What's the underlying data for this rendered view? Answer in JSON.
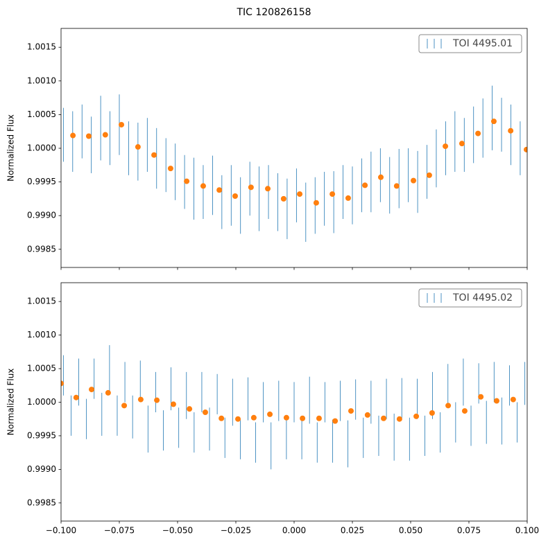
{
  "title": "TIC 120826158",
  "chart_data": [
    {
      "type": "errorbar",
      "ylabel": "Normalized Flux",
      "legend": "upper right",
      "xlim": [
        -0.1,
        0.1
      ],
      "xticks": [
        -0.1,
        -0.075,
        -0.05,
        -0.025,
        0,
        0.025,
        0.05,
        0.075,
        0.1
      ],
      "show_xtick_labels": false,
      "ylim": [
        0.99823,
        1.00178
      ],
      "yticks": [
        0.9985,
        {
          "value": 0.999,
          "label": "0.9990"
        },
        0.9995,
        {
          "value": 1,
          "label": "1.0000"
        },
        1.0005,
        {
          "value": 1.001,
          "label": "1.0010"
        },
        1.0015
      ],
      "series": [
        {
          "name": "TOI 4495.01",
          "color": "#1f77b4",
          "x": [
            -0.099,
            -0.095,
            -0.091,
            -0.087,
            -0.083,
            -0.079,
            -0.075,
            -0.071,
            -0.067,
            -0.063,
            -0.059,
            -0.055,
            -0.051,
            -0.047,
            -0.043,
            -0.039,
            -0.035,
            -0.031,
            -0.027,
            -0.023,
            -0.019,
            -0.015,
            -0.011,
            -0.007,
            -0.003,
            0.001,
            0.005,
            0.009,
            0.013,
            0.017,
            0.021,
            0.025,
            0.029,
            0.033,
            0.037,
            0.041,
            0.045,
            0.049,
            0.053,
            0.057,
            0.061,
            0.065,
            0.069,
            0.073,
            0.077,
            0.081,
            0.085,
            0.089,
            0.093,
            0.097
          ],
          "values": [
            1.0002,
            1.0001,
            1.00025,
            1.00005,
            1.0003,
            1.00015,
            1.00035,
            1.0,
            0.99995,
            1.00005,
            0.99985,
            0.99975,
            0.99965,
            0.9995,
            0.9994,
            0.99935,
            0.99945,
            0.9992,
            0.9993,
            0.99915,
            0.9994,
            0.99925,
            0.99935,
            0.9992,
            0.9991,
            0.9993,
            0.99905,
            0.99915,
            0.99925,
            0.9992,
            0.99935,
            0.9993,
            0.99945,
            0.9995,
            0.9996,
            0.99945,
            0.99955,
            0.9996,
            0.9995,
            0.99965,
            0.99985,
            1.0,
            1.0001,
            1.00005,
            1.0002,
            1.0003,
            1.00045,
            1.00035,
            1.0002,
            1.0
          ],
          "errors": [
            0.0004,
            0.00045,
            0.0004,
            0.00042,
            0.00048,
            0.0004,
            0.00045,
            0.0004,
            0.00043,
            0.0004,
            0.00045,
            0.0004,
            0.00042,
            0.0004,
            0.00046,
            0.0004,
            0.00044,
            0.0004,
            0.00045,
            0.00042,
            0.0004,
            0.00048,
            0.0004,
            0.00043,
            0.00045,
            0.0004,
            0.00044,
            0.00042,
            0.0004,
            0.00046,
            0.0004,
            0.00043,
            0.0004,
            0.00045,
            0.0004,
            0.00042,
            0.00044,
            0.0004,
            0.00046,
            0.0004,
            0.00043,
            0.0004,
            0.00045,
            0.0004,
            0.00042,
            0.00044,
            0.00048,
            0.0004,
            0.00045,
            0.0004
          ]
        },
        {
          "color": "#ff7f0e",
          "x": [
            -0.0949,
            -0.0881,
            -0.081,
            -0.0741,
            -0.067,
            -0.0601,
            -0.053,
            -0.0461,
            -0.039,
            -0.0321,
            -0.0253,
            -0.0185,
            -0.0113,
            -0.0045,
            0.0024,
            0.0095,
            0.0164,
            0.0232,
            0.0304,
            0.0372,
            0.044,
            0.0512,
            0.058,
            0.0649,
            0.072,
            0.0789,
            0.0857,
            0.0929,
            0.0997
          ],
          "values": [
            1.00019,
            1.00018,
            1.0002,
            1.00035,
            1.00002,
            0.9999,
            0.9997,
            0.99951,
            0.99944,
            0.99938,
            0.99929,
            0.99942,
            0.9994,
            0.99925,
            0.99932,
            0.99919,
            0.99932,
            0.99926,
            0.99945,
            0.99957,
            0.99944,
            0.99952,
            0.9996,
            1.00003,
            1.00007,
            1.00022,
            1.0004,
            1.00026,
            0.99998
          ]
        }
      ]
    },
    {
      "type": "errorbar",
      "ylabel": "Normalized Flux",
      "legend": "upper right",
      "xlim": [
        -0.1,
        0.1
      ],
      "xticks": [
        {
          "value": -0.1,
          "label": "−0.100"
        },
        {
          "value": -0.075,
          "label": "−0.075"
        },
        {
          "value": -0.05,
          "label": "−0.050"
        },
        {
          "value": -0.025,
          "label": "−0.025"
        },
        {
          "value": 0,
          "label": "0.000"
        },
        {
          "value": 0.025,
          "label": "0.025"
        },
        {
          "value": 0.05,
          "label": "0.050"
        },
        {
          "value": 0.075,
          "label": "0.075"
        },
        {
          "value": 0.1,
          "label": "0.100"
        }
      ],
      "show_xtick_labels": true,
      "ylim": [
        0.99823,
        1.00178
      ],
      "yticks": [
        0.9985,
        {
          "value": 0.999,
          "label": "0.9990"
        },
        0.9995,
        {
          "value": 1,
          "label": "1.0000"
        },
        1.0005,
        {
          "value": 1.001,
          "label": "1.0010"
        },
        1.0015
      ],
      "series": [
        {
          "name": "TOI 4495.02",
          "color": "#1f77b4",
          "x": [
            -0.099,
            -0.0957,
            -0.0924,
            -0.0891,
            -0.0858,
            -0.0825,
            -0.0792,
            -0.0759,
            -0.0726,
            -0.0693,
            -0.066,
            -0.0627,
            -0.0594,
            -0.0561,
            -0.0528,
            -0.0495,
            -0.0462,
            -0.0429,
            -0.0396,
            -0.0363,
            -0.033,
            -0.0297,
            -0.0264,
            -0.0231,
            -0.0198,
            -0.0165,
            -0.0132,
            -0.0099,
            -0.0066,
            -0.0033,
            0,
            0.0033,
            0.0066,
            0.0099,
            0.0132,
            0.0165,
            0.0198,
            0.0231,
            0.0264,
            0.0297,
            0.033,
            0.0363,
            0.0396,
            0.0429,
            0.0462,
            0.0495,
            0.0528,
            0.0561,
            0.0594,
            0.0627,
            0.066,
            0.0693,
            0.0726,
            0.0759,
            0.0792,
            0.0825,
            0.0858,
            0.0891,
            0.0924,
            0.0957,
            0.099
          ],
          "values": [
            1.0004,
            0.9998,
            1.0003,
            0.99975,
            1.00035,
            0.99982,
            1.0005,
            0.9998,
            1.0003,
            0.99978,
            1.00032,
            0.9996,
            1.00015,
            0.99958,
            1.0002,
            0.99962,
            1.0001,
            0.99955,
            1.00015,
            0.9996,
            1.00012,
            0.99947,
            1.0,
            0.99945,
            1.00005,
            0.9994,
            1.0,
            0.99935,
            1.00002,
            0.99947,
            1.0,
            0.99945,
            1.00003,
            0.9994,
            1.0,
            0.99942,
            1.00002,
            0.99938,
            1.00004,
            0.99947,
            1.0,
            0.9995,
            1.00005,
            0.99948,
            1.00006,
            0.99945,
            1.00005,
            0.9995,
            1.0001,
            0.99955,
            1.00025,
            0.9997,
            1.0003,
            0.99965,
            1.00028,
            0.9997,
            1.0003,
            0.99972,
            1.00025,
            0.9997,
            1.00028
          ],
          "errors": [
            0.0003,
            0.0003,
            0.00035,
            0.0003,
            0.0003,
            0.00032,
            0.00035,
            0.0003,
            0.0003,
            0.00032,
            0.0003,
            0.00035,
            0.0003,
            0.0003,
            0.00032,
            0.0003,
            0.00035,
            0.0003,
            0.0003,
            0.00032,
            0.0003,
            0.0003,
            0.00035,
            0.0003,
            0.00032,
            0.0003,
            0.0003,
            0.00035,
            0.0003,
            0.00032,
            0.0003,
            0.0003,
            0.00035,
            0.0003,
            0.0003,
            0.00032,
            0.0003,
            0.00035,
            0.0003,
            0.0003,
            0.00032,
            0.0003,
            0.0003,
            0.00035,
            0.0003,
            0.00032,
            0.0003,
            0.0003,
            0.00035,
            0.0003,
            0.00032,
            0.0003,
            0.00035,
            0.0003,
            0.0003,
            0.00032,
            0.0003,
            0.00035,
            0.0003,
            0.0003,
            0.00032
          ]
        },
        {
          "color": "#ff7f0e",
          "x": [
            -0.1,
            -0.0935,
            -0.0869,
            -0.0798,
            -0.0729,
            -0.0658,
            -0.0589,
            -0.0518,
            -0.0449,
            -0.0381,
            -0.0312,
            -0.0241,
            -0.0173,
            -0.0104,
            -0.0033,
            0.0036,
            0.0107,
            0.0176,
            0.0244,
            0.0315,
            0.0384,
            0.0452,
            0.0524,
            0.0592,
            0.0661,
            0.0732,
            0.0801,
            0.0869,
            0.094
          ],
          "values": [
            1.00028,
            1.00007,
            1.00019,
            1.00014,
            0.99995,
            1.00004,
            1.00003,
            0.99997,
            0.9999,
            0.99985,
            0.99976,
            0.99975,
            0.99977,
            0.99982,
            0.99977,
            0.99976,
            0.99976,
            0.99972,
            0.99987,
            0.99981,
            0.99976,
            0.99975,
            0.99979,
            0.99984,
            0.99995,
            0.99987,
            1.00008,
            1.00002,
            1.00004
          ]
        }
      ]
    }
  ]
}
